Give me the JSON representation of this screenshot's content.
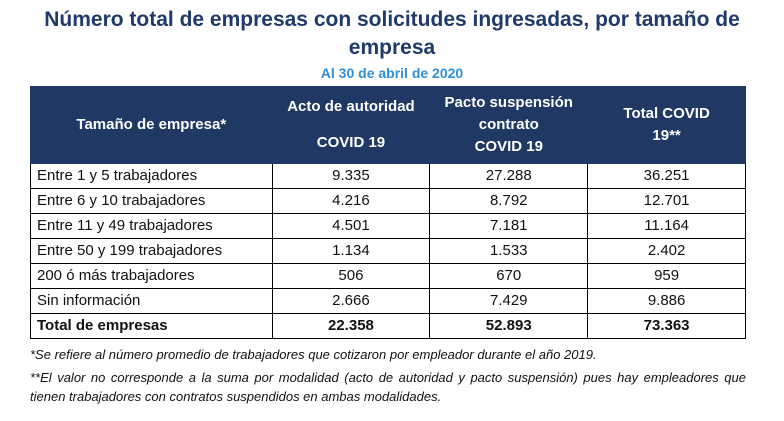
{
  "title": {
    "line1": "Número total de empresas con solicitudes ingresadas, por tamaño de",
    "line2": "empresa"
  },
  "subtitle": "Al 30 de abril de 2020",
  "table": {
    "headers": [
      {
        "top": "Tamaño de empresa*",
        "bottom": ""
      },
      {
        "top": "Acto de autoridad",
        "bottom": "COVID 19"
      },
      {
        "top": "Pacto suspensión contrato",
        "bottom": "COVID 19"
      },
      {
        "top": "Total COVID 19**",
        "bottom": ""
      }
    ],
    "rows": [
      {
        "label": "Entre 1 y 5 trabajadores",
        "acto": "9.335",
        "pacto": "27.288",
        "total": "36.251"
      },
      {
        "label": "Entre 6 y 10 trabajadores",
        "acto": "4.216",
        "pacto": "8.792",
        "total": "12.701"
      },
      {
        "label": "Entre 11 y 49 trabajadores",
        "acto": "4.501",
        "pacto": "7.181",
        "total": "11.164"
      },
      {
        "label": "Entre 50 y 199 trabajadores",
        "acto": "1.134",
        "pacto": "1.533",
        "total": "2.402"
      },
      {
        "label": "200 ó más trabajadores",
        "acto": "506",
        "pacto": "670",
        "total": "959"
      },
      {
        "label": "Sin información",
        "acto": "2.666",
        "pacto": "7.429",
        "total": "9.886"
      }
    ],
    "total_row": {
      "label": "Total de empresas",
      "acto": "22.358",
      "pacto": "52.893",
      "total": "73.363"
    }
  },
  "notes": {
    "note1": "*Se refiere al número promedio de trabajadores que cotizaron por empleador durante el año 2019.",
    "note2": "**El valor no corresponde a la suma por modalidad (acto de autoridad y pacto suspensión) pues hay empleadores que tienen trabajadores con contratos suspendidos en ambas modalidades."
  },
  "colors": {
    "title": "#1f3a6b",
    "subtitle": "#2f8fd8",
    "header_bg": "#1f3864",
    "header_text": "#ffffff"
  }
}
